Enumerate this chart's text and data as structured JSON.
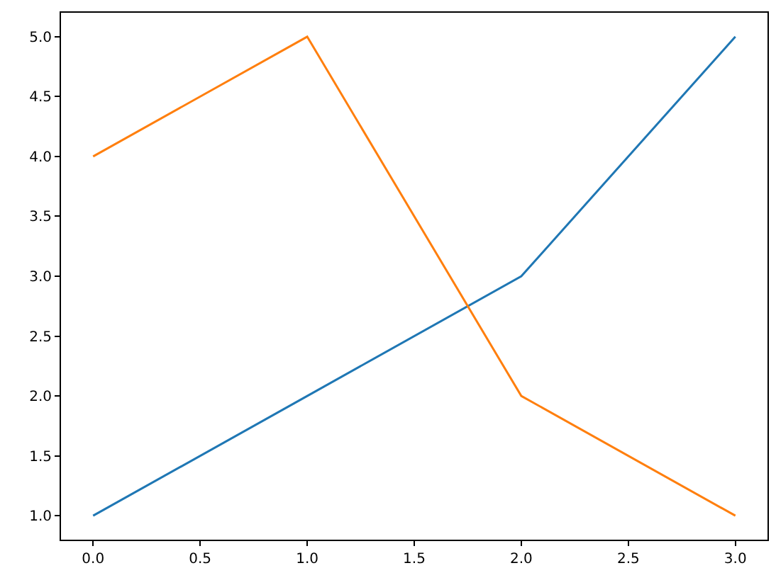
{
  "chart_data": {
    "type": "line",
    "x": [
      0,
      1,
      2,
      3
    ],
    "series": [
      {
        "color": "#1f77b4",
        "values": [
          1,
          2,
          3,
          5
        ]
      },
      {
        "color": "#ff7f0e",
        "values": [
          4,
          5,
          2,
          1
        ]
      }
    ],
    "xlim": [
      -0.15,
      3.15
    ],
    "xticks": [
      {
        "value": 0,
        "label": "0.0"
      },
      {
        "value": 0.5,
        "label": "0.5"
      },
      {
        "value": 1,
        "label": "1.0"
      },
      {
        "value": 1.5,
        "label": "1.5"
      },
      {
        "value": 2,
        "label": "2.0"
      },
      {
        "value": 2.5,
        "label": "2.5"
      },
      {
        "value": 3,
        "label": "3.0"
      }
    ],
    "ylim": [
      0.8,
      5.2
    ],
    "yticks": [
      {
        "value": 1,
        "label": "1.0"
      },
      {
        "value": 1.5,
        "label": "1.5"
      },
      {
        "value": 2,
        "label": "2.0"
      },
      {
        "value": 2.5,
        "label": "2.5"
      },
      {
        "value": 3,
        "label": "3.0"
      },
      {
        "value": 3.5,
        "label": "3.5"
      },
      {
        "value": 4,
        "label": "4.0"
      },
      {
        "value": 4.5,
        "label": "4.5"
      },
      {
        "value": 5,
        "label": "5.0"
      }
    ],
    "line_style": "solid"
  }
}
